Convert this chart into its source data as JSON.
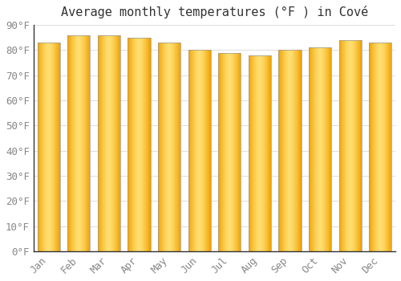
{
  "title": "Average monthly temperatures (°F ) in Cové",
  "months": [
    "Jan",
    "Feb",
    "Mar",
    "Apr",
    "May",
    "Jun",
    "Jul",
    "Aug",
    "Sep",
    "Oct",
    "Nov",
    "Dec"
  ],
  "values": [
    83,
    86,
    86,
    85,
    83,
    80,
    79,
    78,
    80,
    81,
    84,
    83
  ],
  "bar_color_center": "#FFD966",
  "bar_color_edge": "#F0A000",
  "bar_outline_color": "#888888",
  "background_color": "#ffffff",
  "plot_bg_color": "#f5f5f5",
  "ylim": [
    0,
    90
  ],
  "yticks": [
    0,
    10,
    20,
    30,
    40,
    50,
    60,
    70,
    80,
    90
  ],
  "ytick_labels": [
    "0°F",
    "10°F",
    "20°F",
    "30°F",
    "40°F",
    "50°F",
    "60°F",
    "70°F",
    "80°F",
    "90°F"
  ],
  "grid_color": "#e0e0e0",
  "title_fontsize": 11,
  "tick_fontsize": 9,
  "figsize": [
    5.0,
    3.5
  ],
  "dpi": 100,
  "bar_width": 0.75,
  "n_gradient_steps": 80
}
